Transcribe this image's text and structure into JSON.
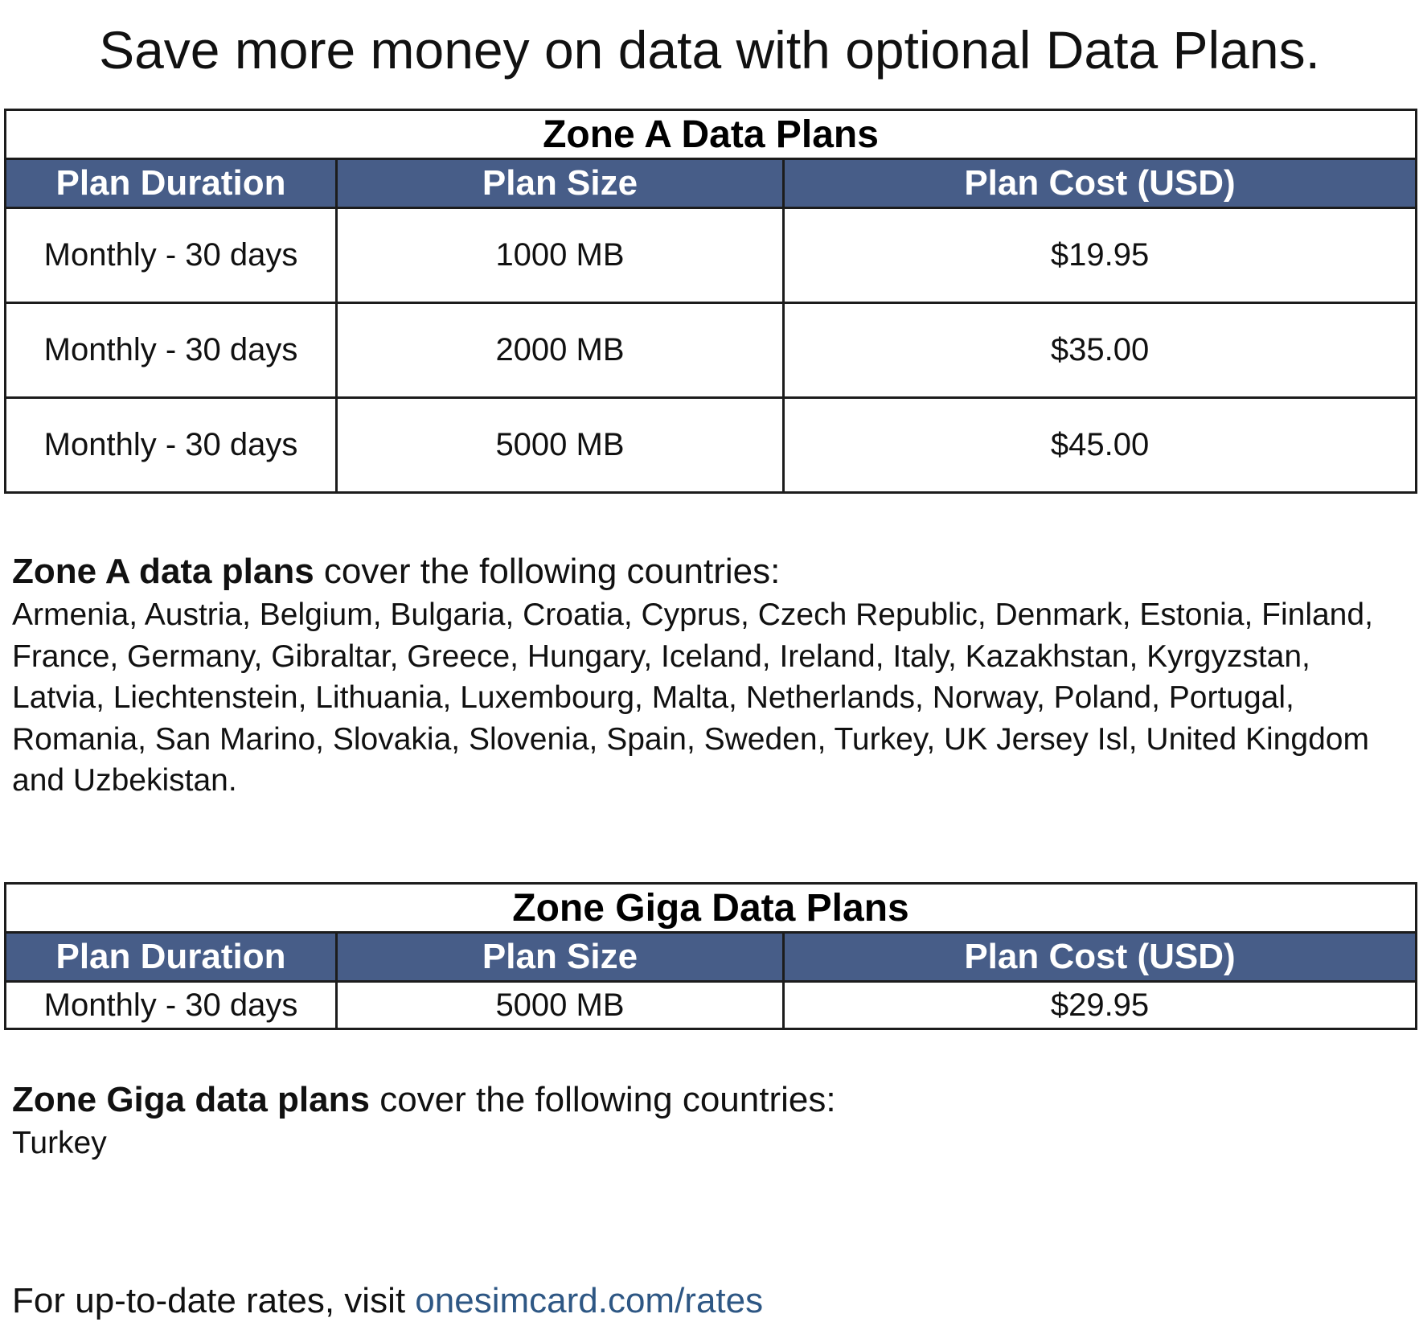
{
  "title": "Save more money on data with optional Data Plans.",
  "zone_a": {
    "caption": "Zone A Data Plans",
    "columns": [
      "Plan Duration",
      "Plan Size",
      "Plan Cost (USD)"
    ],
    "rows": [
      [
        "Monthly - 30 days",
        "1000 MB",
        "$19.95"
      ],
      [
        "Monthly - 30 days",
        "2000 MB",
        "$35.00"
      ],
      [
        "Monthly - 30 days",
        "5000 MB",
        "$45.00"
      ]
    ],
    "coverage_bold": "Zone A data plans",
    "coverage_rest": " cover the following countries:",
    "countries": "Armenia, Austria, Belgium, Bulgaria, Croatia, Cyprus, Czech Republic, Denmark, Estonia, Finland, France, Germany, Gibraltar, Greece, Hungary, Iceland, Ireland, Italy, Kazakhstan, Kyrgyzstan, Latvia, Liechtenstein, Lithuania, Luxembourg, Malta, Netherlands, Norway, Poland, Portugal, Romania, San Marino, Slovakia, Slovenia, Spain, Sweden, Turkey, UK Jersey Isl, United Kingdom and Uzbekistan."
  },
  "zone_giga": {
    "caption": "Zone Giga Data Plans",
    "columns": [
      "Plan Duration",
      "Plan Size",
      "Plan Cost (USD)"
    ],
    "rows": [
      [
        "Monthly - 30 days",
        "5000 MB",
        "$29.95"
      ]
    ],
    "coverage_bold": "Zone Giga data plans",
    "coverage_rest": " cover the following countries:",
    "countries": "Turkey"
  },
  "footer": {
    "text": "For up-to-date rates, visit ",
    "link_text": "onesimcard.com/rates"
  },
  "colors": {
    "header_bg": "#475d88",
    "header_text": "#ffffff",
    "link": "#2e5784"
  }
}
